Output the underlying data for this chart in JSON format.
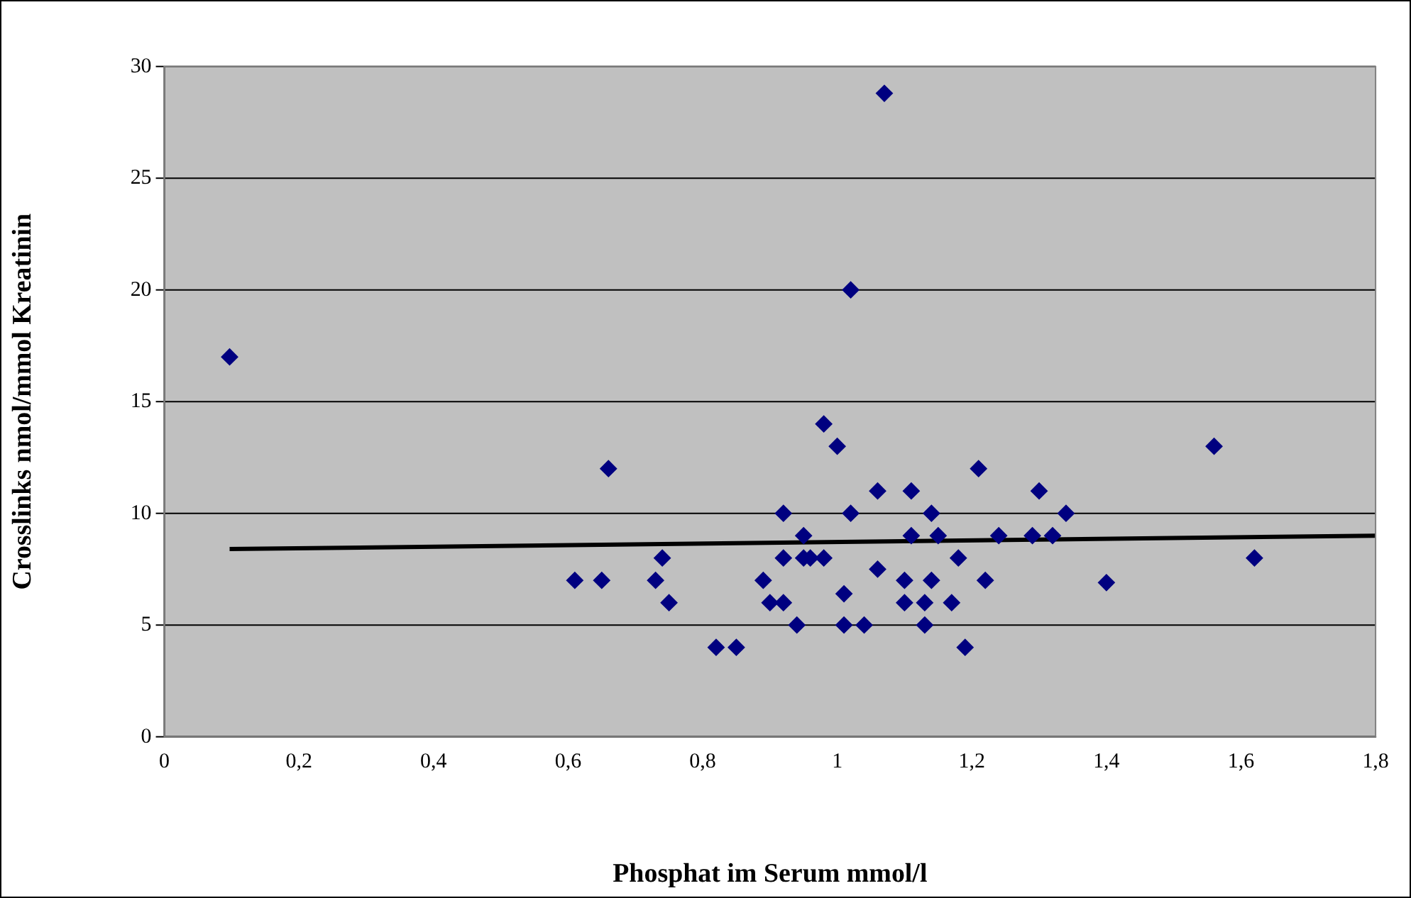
{
  "chart_data": {
    "type": "scatter",
    "xlabel": "Phosphat im Serum mmol/l",
    "ylabel": "Crosslinks nmol/mmol Kreatinin",
    "xlim": [
      0,
      1.8
    ],
    "xticks": [
      0,
      {
        "value": 0.2,
        "label": "0,2"
      },
      {
        "value": 0.4,
        "label": "0,4"
      },
      {
        "value": 0.6,
        "label": "0,6"
      },
      {
        "value": 0.8,
        "label": "0,8"
      },
      1,
      {
        "value": 1.2,
        "label": "1,2"
      },
      {
        "value": 1.4,
        "label": "1,4"
      },
      {
        "value": 1.6,
        "label": "1,6"
      },
      {
        "value": 1.8,
        "label": "1,8"
      }
    ],
    "ylim": [
      0,
      30
    ],
    "yticks": [
      0,
      5,
      10,
      15,
      20,
      25,
      30
    ],
    "grid": "y",
    "legend": false,
    "marker": "diamond",
    "series": [
      {
        "type": "scatter",
        "color": "#000080",
        "x": [
          0.097,
          0.61,
          0.65,
          0.66,
          0.73,
          0.74,
          0.75,
          0.82,
          0.85,
          0.89,
          0.9,
          0.92,
          0.92,
          0.92,
          0.94,
          0.95,
          0.95,
          0.96,
          0.98,
          0.98,
          1.0,
          1.01,
          1.01,
          1.02,
          1.02,
          1.04,
          1.06,
          1.06,
          1.07,
          1.1,
          1.1,
          1.11,
          1.11,
          1.13,
          1.13,
          1.14,
          1.14,
          1.15,
          1.17,
          1.18,
          1.19,
          1.21,
          1.22,
          1.24,
          1.29,
          1.3,
          1.32,
          1.34,
          1.4,
          1.56,
          1.62
        ],
        "values": [
          17,
          7,
          7,
          12,
          7,
          8,
          6,
          4,
          4,
          7,
          6,
          10,
          8,
          6,
          5,
          9,
          8,
          8,
          8,
          14,
          13,
          6.4,
          5,
          10,
          20,
          5,
          11,
          7.5,
          28.8,
          7,
          6,
          11,
          9,
          5,
          6,
          10,
          7,
          9,
          6,
          8,
          4,
          12,
          7,
          9,
          9,
          11,
          9,
          10,
          6.9,
          13,
          8
        ]
      },
      {
        "type": "line",
        "color": "#000000",
        "marker": "none",
        "x": [
          0.097,
          1.8
        ],
        "values": [
          8.4,
          9.0
        ]
      }
    ]
  }
}
